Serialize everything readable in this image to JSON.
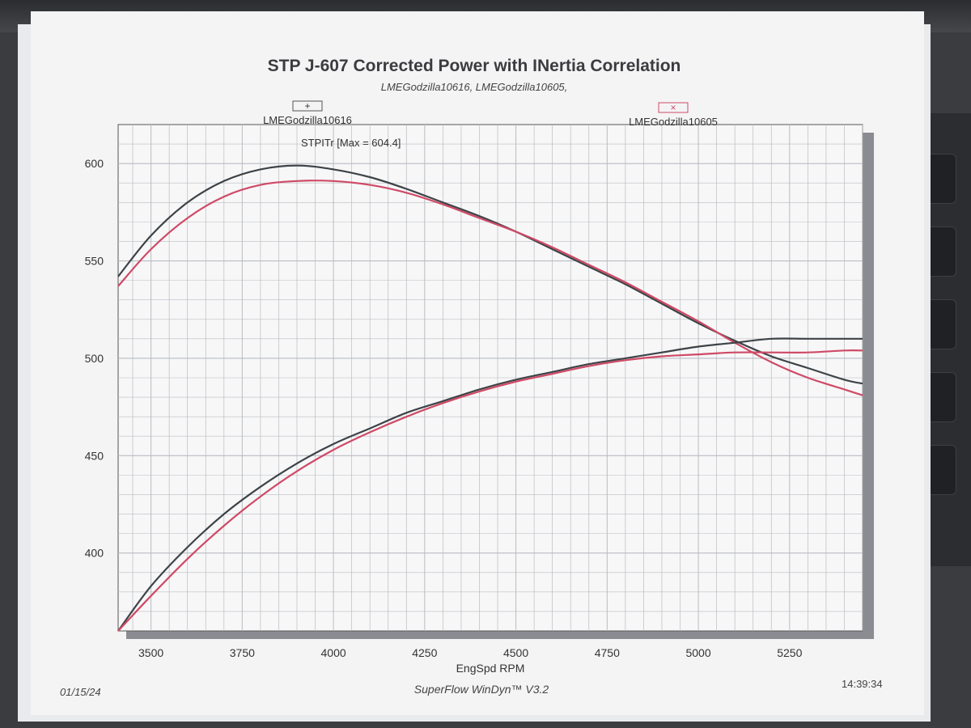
{
  "page": {
    "title": "STP J-607 Corrected Power with INertia Correlation",
    "subtitle": "LMEGodzilla10616, LMEGodzilla10605,",
    "date": "01/15/24",
    "software": "SuperFlow WinDyn™ V3.2",
    "time": "14:39:34"
  },
  "colors": {
    "series_a": "#3d4347",
    "series_b": "#cf4a66",
    "grid": "#b9bcc1",
    "background": "#f4f4f5"
  },
  "chart_data": {
    "type": "line",
    "title": "STP J-607 Corrected Power with INertia Correlation",
    "subtitle": "LMEGodzilla10616, LMEGodzilla10605,",
    "xlabel": "EngSpd RPM",
    "ylabel": "",
    "xlim": [
      3410,
      5450
    ],
    "ylim": [
      360,
      620
    ],
    "x_ticks": [
      3500,
      3750,
      4000,
      4250,
      4500,
      4750,
      5000,
      5250
    ],
    "y_ticks": [
      400,
      450,
      500,
      550,
      600
    ],
    "grid": true,
    "legend": [
      {
        "name": "LMEGodzilla10616",
        "marker": "+",
        "placement": "top-left"
      },
      {
        "name": "LMEGodzilla10605",
        "marker": "×",
        "placement": "top-right"
      }
    ],
    "annotation": "STPITr [Max = 604.4]",
    "series": [
      {
        "name": "LMEGodzilla10616",
        "curve": "torque",
        "color": "#3d4347",
        "x": [
          3410,
          3500,
          3600,
          3700,
          3800,
          3900,
          4000,
          4100,
          4200,
          4300,
          4400,
          4500,
          4600,
          4700,
          4800,
          4900,
          5000,
          5100,
          5200,
          5300,
          5400,
          5450
        ],
        "y": [
          542,
          563,
          580,
          591,
          597,
          599,
          597,
          593,
          587,
          580,
          573,
          565,
          556,
          547,
          538,
          528,
          518,
          509,
          501,
          495,
          489,
          487
        ]
      },
      {
        "name": "LMEGodzilla10605",
        "curve": "torque",
        "color": "#cf4a66",
        "x": [
          3410,
          3500,
          3600,
          3700,
          3800,
          3900,
          4000,
          4100,
          4200,
          4300,
          4400,
          4500,
          4600,
          4700,
          4800,
          4900,
          5000,
          5100,
          5200,
          5300,
          5400,
          5450
        ],
        "y": [
          537,
          556,
          572,
          583,
          589,
          591,
          591,
          589,
          585,
          579,
          572,
          565,
          557,
          548,
          539,
          529,
          519,
          508,
          498,
          490,
          484,
          481
        ]
      },
      {
        "name": "LMEGodzilla10616",
        "curve": "power",
        "color": "#3d4347",
        "x": [
          3410,
          3500,
          3600,
          3700,
          3800,
          3900,
          4000,
          4100,
          4200,
          4300,
          4400,
          4500,
          4600,
          4700,
          4800,
          4900,
          5000,
          5100,
          5200,
          5300,
          5400,
          5450
        ],
        "y": [
          360,
          383,
          403,
          420,
          434,
          446,
          456,
          464,
          472,
          478,
          484,
          489,
          493,
          497,
          500,
          503,
          506,
          508,
          510,
          510,
          510,
          510
        ]
      },
      {
        "name": "LMEGodzilla10605",
        "curve": "power",
        "color": "#cf4a66",
        "x": [
          3410,
          3500,
          3600,
          3700,
          3800,
          3900,
          4000,
          4100,
          4200,
          4300,
          4400,
          4500,
          4600,
          4700,
          4800,
          4900,
          5000,
          5100,
          5200,
          5300,
          5400,
          5450
        ],
        "y": [
          360,
          378,
          397,
          414,
          429,
          442,
          453,
          462,
          470,
          477,
          483,
          488,
          492,
          496,
          499,
          501,
          502,
          503,
          503,
          503,
          504,
          504
        ]
      }
    ]
  }
}
